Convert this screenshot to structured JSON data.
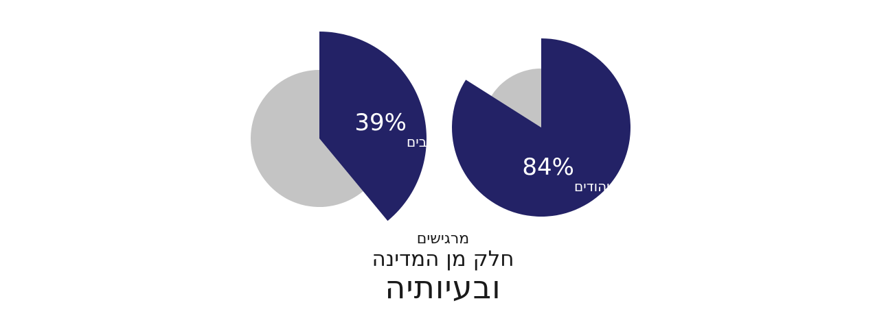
{
  "chart_data": [
    {
      "type": "pie",
      "title": "",
      "slices": [
        {
          "label": "39%",
          "sublabel": "מהערבים",
          "value": 39,
          "color": "#232266"
        },
        {
          "label": "",
          "value": 61,
          "color": "#c4c4c4"
        }
      ]
    },
    {
      "type": "pie",
      "title": "",
      "slices": [
        {
          "label": "84%",
          "sublabel": "מהיהודים",
          "value": 84,
          "color": "#232266"
        },
        {
          "label": "",
          "value": 16,
          "color": "#c4c4c4"
        }
      ]
    }
  ],
  "caption": {
    "line1": "מרגישים",
    "line2": "חלק מן המדינה",
    "line3": "ובעיותיה"
  }
}
